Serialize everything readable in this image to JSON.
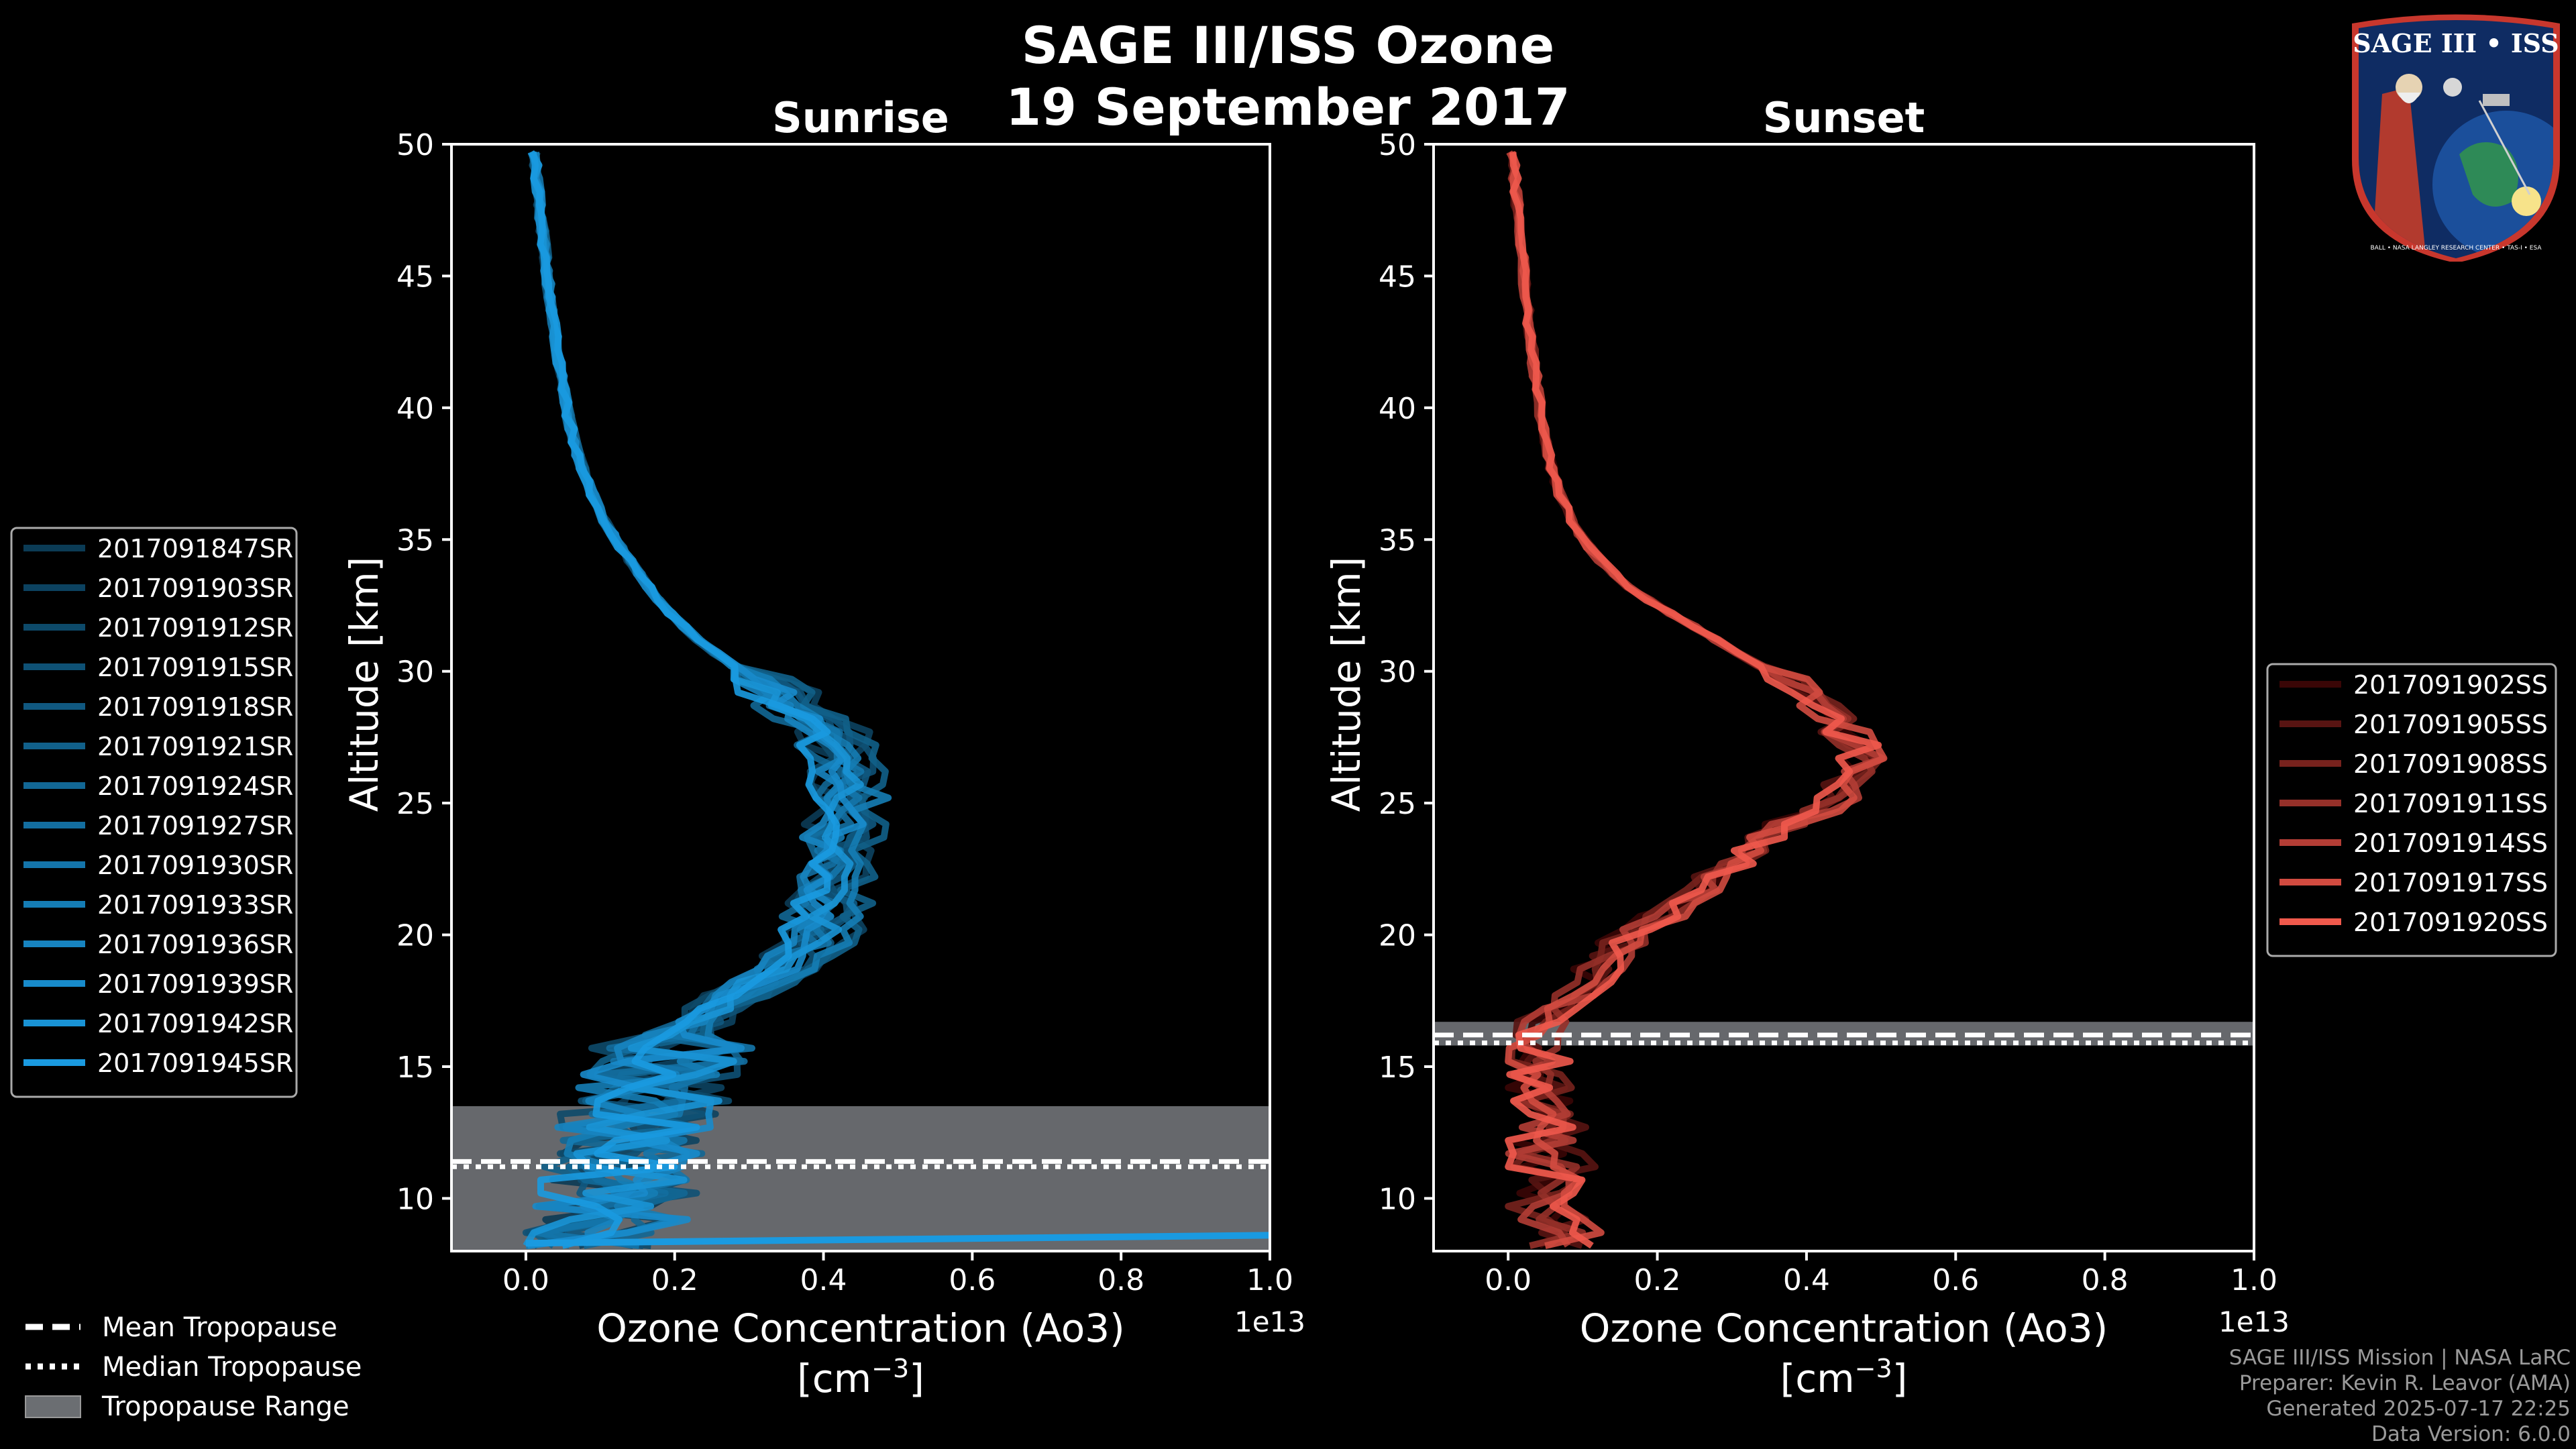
{
  "title_line1": "SAGE III/ISS Ozone",
  "title_line2": "19 September 2017",
  "colors": {
    "sunrise_dark": "#0b3b55",
    "sunrise_light": "#1a9ae0",
    "sunset_dark": "#3a0606",
    "sunset_light": "#f0594c",
    "tropo_fill": "#6b6e72",
    "background": "#000000",
    "axes": "#ffffff"
  },
  "badge": {
    "top_text": "SAGE III • ISS",
    "ring_text": "BALL • NASA LANGLEY RESEARCH CENTER • TAS-I • ESA"
  },
  "credits": {
    "line1": "SAGE III/ISS Mission | NASA LaRC",
    "line2": "Preparer: Kevin R. Leavor (AMA)",
    "line3": "Generated 2025-07-17 22:25",
    "line4": "Data Version: 6.0.0"
  },
  "legend_tropo": {
    "mean": "Mean Tropopause",
    "median": "Median Tropopause",
    "range": "Tropopause Range"
  },
  "chart_data": [
    {
      "type": "line",
      "panel": "sunrise",
      "title": "Sunrise",
      "xlabel": "Ozone Concentration (Ao3)",
      "xunits": "[cm",
      "xunits_exp": "−3",
      "xunits_close": "]",
      "ylabel": "Altitude [km]",
      "offset_label": "1e13",
      "xlim": [
        -0.1,
        1.0
      ],
      "ylim": [
        8,
        50
      ],
      "xticks": [
        0.0,
        0.2,
        0.4,
        0.6,
        0.8,
        1.0
      ],
      "xtick_labels": [
        "0.0",
        "0.2",
        "0.4",
        "0.6",
        "0.8",
        "1.0"
      ],
      "yticks": [
        10,
        15,
        20,
        25,
        30,
        35,
        40,
        45,
        50
      ],
      "ytick_labels": [
        "10",
        "15",
        "20",
        "25",
        "30",
        "35",
        "40",
        "45",
        "50"
      ],
      "tropopause": {
        "mean": 11.4,
        "median": 11.2,
        "range": [
          8.0,
          13.5
        ]
      },
      "legend": [
        "2017091847SR",
        "2017091903SR",
        "2017091912SR",
        "2017091915SR",
        "2017091918SR",
        "2017091921SR",
        "2017091924SR",
        "2017091927SR",
        "2017091930SR",
        "2017091933SR",
        "2017091936SR",
        "2017091939SR",
        "2017091942SR",
        "2017091945SR"
      ],
      "profile": {
        "altitude": [
          8.5,
          9,
          10,
          11,
          12,
          13,
          14,
          15,
          16,
          17,
          18,
          19,
          20,
          21,
          22,
          23,
          24,
          25,
          26,
          27,
          28,
          29,
          30,
          31,
          32,
          33,
          34,
          35,
          36,
          37,
          38,
          39,
          40,
          42,
          44,
          46,
          48,
          50
        ],
        "ozone": [
          0.06,
          0.12,
          0.12,
          0.13,
          0.14,
          0.15,
          0.17,
          0.18,
          0.2,
          0.24,
          0.3,
          0.36,
          0.39,
          0.4,
          0.4,
          0.41,
          0.42,
          0.43,
          0.43,
          0.42,
          0.39,
          0.34,
          0.29,
          0.24,
          0.2,
          0.17,
          0.145,
          0.12,
          0.1,
          0.085,
          0.072,
          0.062,
          0.055,
          0.043,
          0.033,
          0.025,
          0.017,
          0.01
        ]
      },
      "series_count": 14
    },
    {
      "type": "line",
      "panel": "sunset",
      "title": "Sunset",
      "xlabel": "Ozone Concentration (Ao3)",
      "xunits": "[cm",
      "xunits_exp": "−3",
      "xunits_close": "]",
      "ylabel": "Altitude [km]",
      "offset_label": "1e13",
      "xlim": [
        -0.1,
        1.0
      ],
      "ylim": [
        8,
        50
      ],
      "xticks": [
        0.0,
        0.2,
        0.4,
        0.6,
        0.8,
        1.0
      ],
      "xtick_labels": [
        "0.0",
        "0.2",
        "0.4",
        "0.6",
        "0.8",
        "1.0"
      ],
      "yticks": [
        10,
        15,
        20,
        25,
        30,
        35,
        40,
        45,
        50
      ],
      "ytick_labels": [
        "10",
        "15",
        "20",
        "25",
        "30",
        "35",
        "40",
        "45",
        "50"
      ],
      "tropopause": {
        "mean": 16.2,
        "median": 15.9,
        "range": [
          15.8,
          16.7
        ]
      },
      "legend": [
        "2017091902SS",
        "2017091905SS",
        "2017091908SS",
        "2017091911SS",
        "2017091914SS",
        "2017091917SS",
        "2017091920SS"
      ],
      "profile": {
        "altitude": [
          8.5,
          9,
          10,
          11,
          12,
          13,
          14,
          15,
          16,
          17,
          18,
          19,
          20,
          21,
          22,
          23,
          24,
          25,
          26,
          27,
          28,
          29,
          30,
          31,
          32,
          33,
          34,
          35,
          36,
          37,
          38,
          39,
          40,
          42,
          44,
          46,
          48,
          50
        ],
        "ozone": [
          0.07,
          0.06,
          0.05,
          0.06,
          0.05,
          0.05,
          0.04,
          0.03,
          0.03,
          0.05,
          0.1,
          0.13,
          0.16,
          0.22,
          0.27,
          0.31,
          0.36,
          0.43,
          0.47,
          0.47,
          0.44,
          0.4,
          0.35,
          0.29,
          0.23,
          0.17,
          0.13,
          0.1,
          0.08,
          0.065,
          0.055,
          0.048,
          0.042,
          0.033,
          0.025,
          0.018,
          0.011,
          0.005
        ]
      },
      "series_count": 7
    }
  ]
}
